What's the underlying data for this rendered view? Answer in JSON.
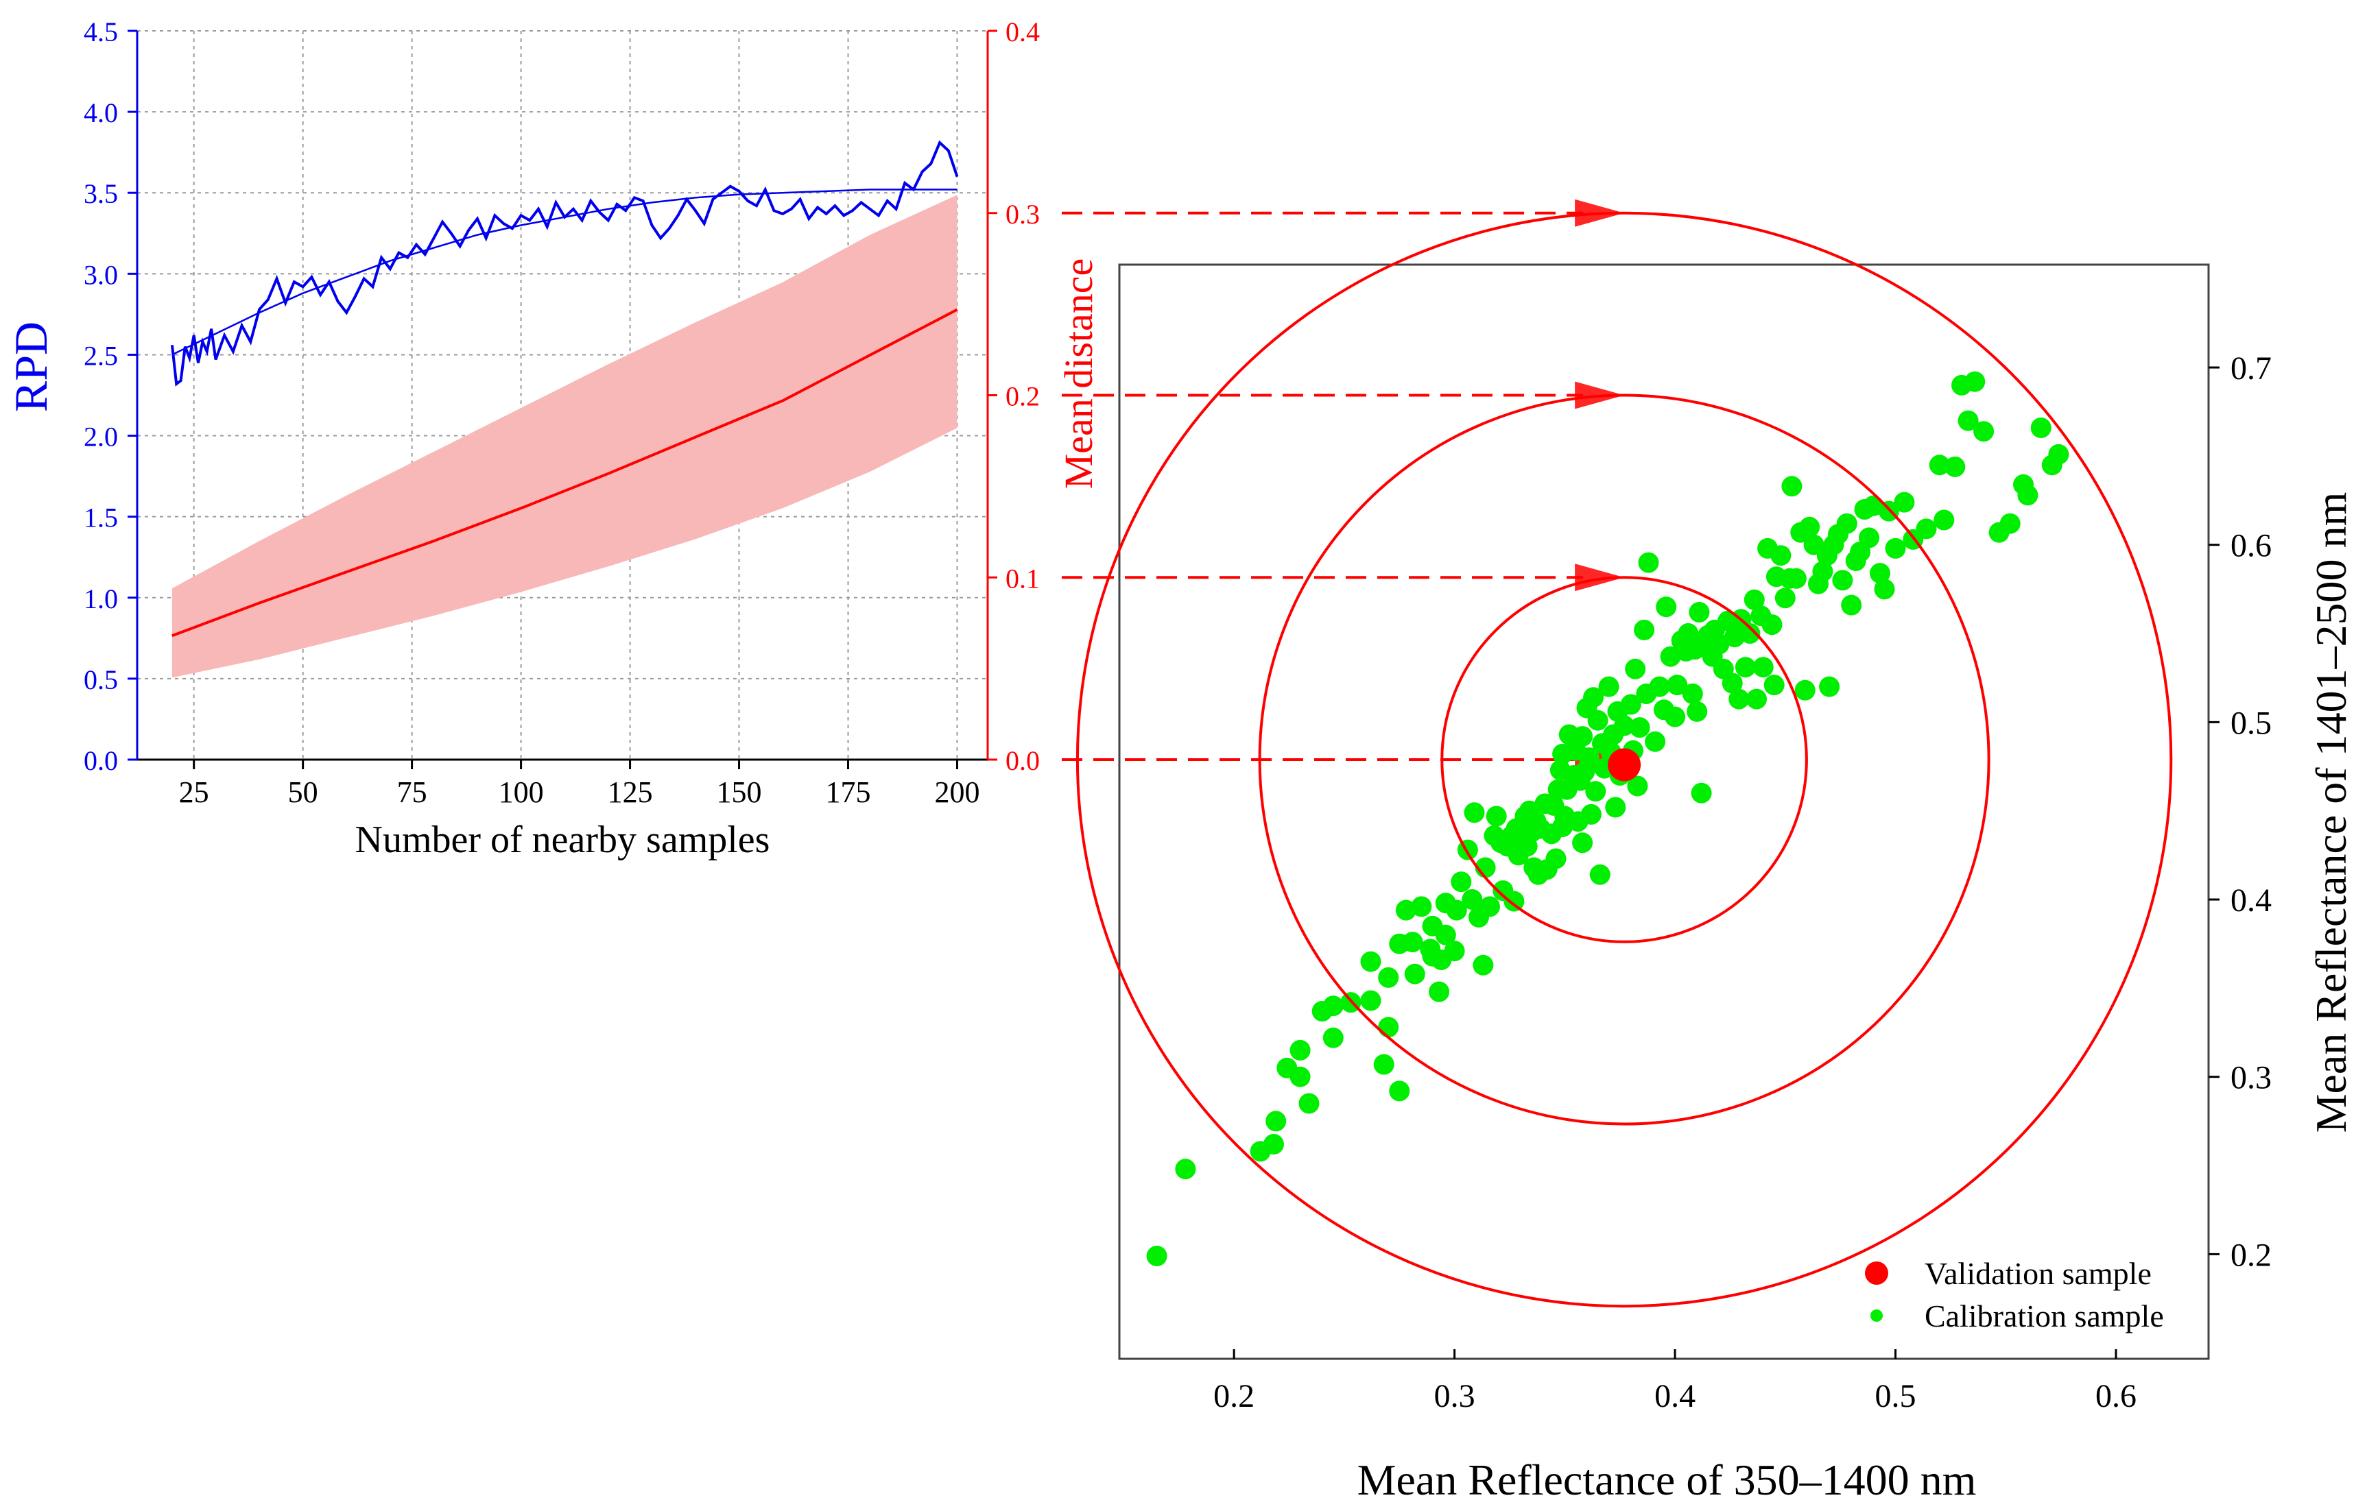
{
  "colors": {
    "rpd": "#0000ee",
    "distance": "#ff0000",
    "band": "#f8b8b8",
    "calibration": "#00ee00",
    "validation": "#ff0000",
    "axis": "#000000",
    "grid": "#9a9a9a"
  },
  "chart_data": [
    {
      "type": "line",
      "xlabel": "Number of nearby samples",
      "ylabel_left": "RPD",
      "ylabel_right": "Mean distance",
      "xlim": [
        12,
        207
      ],
      "ylim_left": [
        0,
        4.5
      ],
      "ylim_right": [
        0,
        0.4
      ],
      "xticks": [
        25,
        50,
        75,
        100,
        125,
        150,
        175,
        200
      ],
      "yticks_left": [
        0.0,
        0.5,
        1.0,
        1.5,
        2.0,
        2.5,
        3.0,
        3.5,
        4.0,
        4.5
      ],
      "yticks_right": [
        0.0,
        0.1,
        0.2,
        0.3,
        0.4
      ],
      "grid": true,
      "series": [
        {
          "name": "RPD",
          "axis": "left",
          "x": [
            20,
            21,
            22,
            23,
            24,
            25,
            26,
            27,
            28,
            29,
            30,
            32,
            34,
            36,
            38,
            40,
            42,
            44,
            46,
            48,
            50,
            52,
            54,
            56,
            58,
            60,
            62,
            64,
            66,
            68,
            70,
            72,
            74,
            76,
            78,
            80,
            82,
            84,
            86,
            88,
            90,
            92,
            94,
            96,
            98,
            100,
            102,
            104,
            106,
            108,
            110,
            112,
            114,
            116,
            118,
            120,
            122,
            124,
            126,
            128,
            130,
            132,
            134,
            136,
            138,
            140,
            142,
            144,
            146,
            148,
            150,
            152,
            154,
            156,
            158,
            160,
            162,
            164,
            166,
            168,
            170,
            172,
            174,
            176,
            178,
            180,
            182,
            184,
            186,
            188,
            190,
            192,
            194,
            196,
            198,
            200
          ],
          "y": [
            2.56,
            2.32,
            2.34,
            2.55,
            2.48,
            2.62,
            2.45,
            2.58,
            2.52,
            2.66,
            2.47,
            2.62,
            2.52,
            2.68,
            2.58,
            2.78,
            2.84,
            2.97,
            2.82,
            2.95,
            2.92,
            2.98,
            2.87,
            2.95,
            2.83,
            2.76,
            2.86,
            2.97,
            2.92,
            3.1,
            3.03,
            3.13,
            3.1,
            3.18,
            3.12,
            3.22,
            3.32,
            3.25,
            3.17,
            3.27,
            3.34,
            3.22,
            3.36,
            3.31,
            3.28,
            3.36,
            3.33,
            3.4,
            3.29,
            3.44,
            3.35,
            3.4,
            3.33,
            3.45,
            3.38,
            3.33,
            3.43,
            3.39,
            3.47,
            3.45,
            3.3,
            3.22,
            3.28,
            3.36,
            3.46,
            3.39,
            3.31,
            3.46,
            3.5,
            3.54,
            3.51,
            3.45,
            3.42,
            3.52,
            3.39,
            3.37,
            3.4,
            3.46,
            3.34,
            3.41,
            3.37,
            3.42,
            3.36,
            3.39,
            3.44,
            3.4,
            3.36,
            3.45,
            3.4,
            3.56,
            3.52,
            3.63,
            3.68,
            3.81,
            3.76,
            3.6
          ]
        },
        {
          "name": "RPD fit",
          "axis": "left",
          "x": [
            20,
            30,
            40,
            50,
            60,
            70,
            80,
            90,
            100,
            110,
            120,
            130,
            140,
            150,
            160,
            170,
            180,
            190,
            200
          ],
          "y": [
            2.5,
            2.63,
            2.76,
            2.88,
            2.98,
            3.08,
            3.16,
            3.24,
            3.3,
            3.35,
            3.4,
            3.44,
            3.47,
            3.49,
            3.5,
            3.51,
            3.52,
            3.52,
            3.52
          ]
        },
        {
          "name": "Mean distance",
          "axis": "right",
          "x": [
            20,
            40,
            60,
            80,
            100,
            120,
            140,
            160,
            180,
            200
          ],
          "y": [
            0.068,
            0.086,
            0.103,
            0.12,
            0.138,
            0.157,
            0.177,
            0.197,
            0.222,
            0.247
          ]
        },
        {
          "name": "Mean distance band",
          "axis": "right",
          "x": [
            20,
            40,
            60,
            80,
            100,
            120,
            140,
            160,
            180,
            200
          ],
          "lower": [
            0.045,
            0.055,
            0.067,
            0.079,
            0.092,
            0.106,
            0.121,
            0.138,
            0.158,
            0.182
          ],
          "upper": [
            0.094,
            0.12,
            0.145,
            0.169,
            0.193,
            0.217,
            0.24,
            0.262,
            0.288,
            0.31
          ]
        }
      ]
    },
    {
      "type": "scatter",
      "xlabel": "Mean Reflectance of 350–1400 nm",
      "ylabel": "Mean Reflectance of 1401–2500 nm",
      "xlim": [
        0.148,
        0.642
      ],
      "ylim": [
        0.141,
        0.758
      ],
      "xticks": [
        0.2,
        0.3,
        0.4,
        0.5,
        0.6
      ],
      "yticks": [
        0.2,
        0.3,
        0.4,
        0.5,
        0.6,
        0.7
      ],
      "grid": false,
      "legend": {
        "position": "bottom-right",
        "entries": [
          "Validation sample",
          "Calibration sample"
        ]
      },
      "validation": [
        0.377,
        0.476
      ],
      "circles": {
        "center": [
          0.377,
          0.476
        ],
        "rings_mean_distance": [
          0.1,
          0.2,
          0.3
        ]
      },
      "calibration": [
        [
          0.165,
          0.199
        ],
        [
          0.178,
          0.248
        ],
        [
          0.212,
          0.258
        ],
        [
          0.218,
          0.262
        ],
        [
          0.219,
          0.275
        ],
        [
          0.224,
          0.305
        ],
        [
          0.23,
          0.3
        ],
        [
          0.23,
          0.315
        ],
        [
          0.234,
          0.285
        ],
        [
          0.24,
          0.337
        ],
        [
          0.245,
          0.34
        ],
        [
          0.245,
          0.322
        ],
        [
          0.253,
          0.342
        ],
        [
          0.262,
          0.343
        ],
        [
          0.262,
          0.365
        ],
        [
          0.268,
          0.307
        ],
        [
          0.27,
          0.356
        ],
        [
          0.27,
          0.328
        ],
        [
          0.275,
          0.292
        ],
        [
          0.275,
          0.375
        ],
        [
          0.278,
          0.394
        ],
        [
          0.281,
          0.376
        ],
        [
          0.282,
          0.358
        ],
        [
          0.285,
          0.396
        ],
        [
          0.289,
          0.372
        ],
        [
          0.29,
          0.368
        ],
        [
          0.29,
          0.385
        ],
        [
          0.293,
          0.348
        ],
        [
          0.294,
          0.366
        ],
        [
          0.296,
          0.38
        ],
        [
          0.296,
          0.398
        ],
        [
          0.3,
          0.371
        ],
        [
          0.301,
          0.394
        ],
        [
          0.303,
          0.41
        ],
        [
          0.306,
          0.428
        ],
        [
          0.308,
          0.4
        ],
        [
          0.309,
          0.449
        ],
        [
          0.311,
          0.39
        ],
        [
          0.313,
          0.363
        ],
        [
          0.314,
          0.418
        ],
        [
          0.316,
          0.396
        ],
        [
          0.318,
          0.436
        ],
        [
          0.319,
          0.447
        ],
        [
          0.321,
          0.432
        ],
        [
          0.322,
          0.405
        ],
        [
          0.324,
          0.43
        ],
        [
          0.326,
          0.436
        ],
        [
          0.327,
          0.399
        ],
        [
          0.328,
          0.44
        ],
        [
          0.329,
          0.425
        ],
        [
          0.33,
          0.44
        ],
        [
          0.331,
          0.433
        ],
        [
          0.332,
          0.447
        ],
        [
          0.333,
          0.43
        ],
        [
          0.334,
          0.45
        ],
        [
          0.335,
          0.438
        ],
        [
          0.336,
          0.418
        ],
        [
          0.337,
          0.444
        ],
        [
          0.338,
          0.414
        ],
        [
          0.339,
          0.44
        ],
        [
          0.341,
          0.454
        ],
        [
          0.342,
          0.417
        ],
        [
          0.344,
          0.437
        ],
        [
          0.345,
          0.453
        ],
        [
          0.346,
          0.423
        ],
        [
          0.347,
          0.462
        ],
        [
          0.348,
          0.473
        ],
        [
          0.349,
          0.441
        ],
        [
          0.349,
          0.482
        ],
        [
          0.35,
          0.447
        ],
        [
          0.351,
          0.462
        ],
        [
          0.352,
          0.493
        ],
        [
          0.354,
          0.47
        ],
        [
          0.355,
          0.484
        ],
        [
          0.356,
          0.444
        ],
        [
          0.357,
          0.467
        ],
        [
          0.358,
          0.432
        ],
        [
          0.358,
          0.492
        ],
        [
          0.359,
          0.472
        ],
        [
          0.36,
          0.508
        ],
        [
          0.361,
          0.48
        ],
        [
          0.362,
          0.448
        ],
        [
          0.363,
          0.514
        ],
        [
          0.364,
          0.461
        ],
        [
          0.365,
          0.501
        ],
        [
          0.366,
          0.414
        ],
        [
          0.367,
          0.488
        ],
        [
          0.368,
          0.474
        ],
        [
          0.37,
          0.52
        ],
        [
          0.371,
          0.483
        ],
        [
          0.372,
          0.493
        ],
        [
          0.373,
          0.452
        ],
        [
          0.374,
          0.506
        ],
        [
          0.375,
          0.47
        ],
        [
          0.377,
          0.498
        ],
        [
          0.38,
          0.51
        ],
        [
          0.381,
          0.484
        ],
        [
          0.382,
          0.53
        ],
        [
          0.383,
          0.464
        ],
        [
          0.384,
          0.497
        ],
        [
          0.386,
          0.552
        ],
        [
          0.387,
          0.516
        ],
        [
          0.388,
          0.59
        ],
        [
          0.391,
          0.489
        ],
        [
          0.393,
          0.52
        ],
        [
          0.395,
          0.507
        ],
        [
          0.396,
          0.565
        ],
        [
          0.398,
          0.537
        ],
        [
          0.4,
          0.503
        ],
        [
          0.401,
          0.521
        ],
        [
          0.403,
          0.546
        ],
        [
          0.405,
          0.54
        ],
        [
          0.406,
          0.55
        ],
        [
          0.408,
          0.516
        ],
        [
          0.409,
          0.541
        ],
        [
          0.41,
          0.506
        ],
        [
          0.411,
          0.562
        ],
        [
          0.412,
          0.46
        ],
        [
          0.413,
          0.545
        ],
        [
          0.415,
          0.549
        ],
        [
          0.417,
          0.537
        ],
        [
          0.418,
          0.552
        ],
        [
          0.42,
          0.544
        ],
        [
          0.422,
          0.53
        ],
        [
          0.424,
          0.557
        ],
        [
          0.426,
          0.522
        ],
        [
          0.427,
          0.548
        ],
        [
          0.429,
          0.513
        ],
        [
          0.43,
          0.558
        ],
        [
          0.432,
          0.531
        ],
        [
          0.434,
          0.55
        ],
        [
          0.436,
          0.569
        ],
        [
          0.437,
          0.513
        ],
        [
          0.439,
          0.56
        ],
        [
          0.44,
          0.531
        ],
        [
          0.442,
          0.598
        ],
        [
          0.444,
          0.555
        ],
        [
          0.445,
          0.521
        ],
        [
          0.446,
          0.582
        ],
        [
          0.448,
          0.594
        ],
        [
          0.45,
          0.57
        ],
        [
          0.452,
          0.581
        ],
        [
          0.453,
          0.633
        ],
        [
          0.455,
          0.581
        ],
        [
          0.457,
          0.607
        ],
        [
          0.459,
          0.518
        ],
        [
          0.461,
          0.61
        ],
        [
          0.463,
          0.6
        ],
        [
          0.465,
          0.578
        ],
        [
          0.467,
          0.585
        ],
        [
          0.469,
          0.594
        ],
        [
          0.47,
          0.52
        ],
        [
          0.472,
          0.6
        ],
        [
          0.474,
          0.606
        ],
        [
          0.476,
          0.58
        ],
        [
          0.478,
          0.612
        ],
        [
          0.48,
          0.566
        ],
        [
          0.482,
          0.591
        ],
        [
          0.484,
          0.596
        ],
        [
          0.486,
          0.62
        ],
        [
          0.488,
          0.604
        ],
        [
          0.49,
          0.622
        ],
        [
          0.493,
          0.584
        ],
        [
          0.495,
          0.575
        ],
        [
          0.497,
          0.619
        ],
        [
          0.5,
          0.598
        ],
        [
          0.504,
          0.624
        ],
        [
          0.508,
          0.603
        ],
        [
          0.514,
          0.609
        ],
        [
          0.52,
          0.645
        ],
        [
          0.522,
          0.614
        ],
        [
          0.527,
          0.644
        ],
        [
          0.53,
          0.69
        ],
        [
          0.533,
          0.67
        ],
        [
          0.536,
          0.692
        ],
        [
          0.54,
          0.664
        ],
        [
          0.547,
          0.607
        ],
        [
          0.552,
          0.612
        ],
        [
          0.558,
          0.634
        ],
        [
          0.56,
          0.628
        ],
        [
          0.566,
          0.666
        ],
        [
          0.571,
          0.645
        ],
        [
          0.574,
          0.651
        ]
      ]
    }
  ]
}
